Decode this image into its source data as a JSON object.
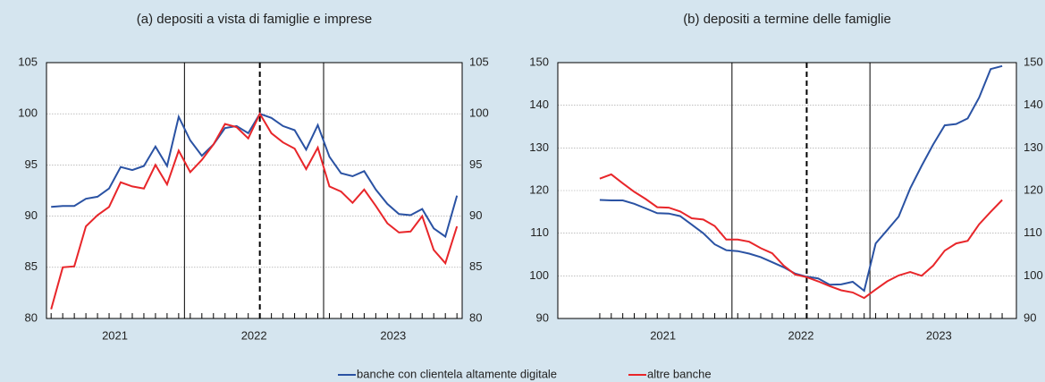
{
  "legend": [
    {
      "name": "banche con clientela altamente digitale",
      "color": "#2a52a3"
    },
    {
      "name": "altre banche",
      "color": "#e8262a"
    }
  ],
  "chart_data": [
    {
      "type": "line",
      "title": "(a) depositi a vista di famiglie e imprese",
      "x": [
        0,
        1,
        2,
        3,
        4,
        5,
        6,
        7,
        8,
        9,
        10,
        11,
        12,
        13,
        14,
        15,
        16,
        17,
        18,
        19,
        20,
        21,
        22,
        23,
        24,
        25,
        26,
        27,
        28,
        29,
        30,
        31,
        32,
        33,
        34,
        35
      ],
      "xlim": [
        -0.4,
        35.45
      ],
      "xticks": [
        {
          "value": 5.5,
          "label": "2021"
        },
        {
          "value": 17.5,
          "label": "2022"
        },
        {
          "value": 29.5,
          "label": "2023"
        }
      ],
      "year_lines": [
        11.5,
        23.5
      ],
      "dashed_line": 18,
      "ylim": [
        80,
        105
      ],
      "yticks": [
        80,
        85,
        90,
        95,
        100,
        105
      ],
      "y2lim": [
        80,
        105
      ],
      "y2ticks": [
        80,
        85,
        90,
        95,
        100,
        105
      ],
      "grid": true,
      "series": [
        {
          "color": "#2a52a3",
          "values": [
            90.9,
            91,
            91,
            91.7,
            91.9,
            92.7,
            94.8,
            94.5,
            94.9,
            96.8,
            94.9,
            99.7,
            97.4,
            95.9,
            97,
            98.6,
            98.8,
            98.1,
            100,
            99.6,
            98.8,
            98.4,
            96.5,
            98.9,
            95.8,
            94.2,
            93.9,
            94.4,
            92.6,
            91.2,
            90.2,
            90.1,
            90.7,
            88.8,
            88,
            92
          ]
        },
        {
          "color": "#e8262a",
          "values": [
            80.9,
            85,
            85.1,
            89,
            90.1,
            90.9,
            93.3,
            92.9,
            92.7,
            95,
            93.1,
            96.4,
            94.3,
            95.5,
            97,
            99,
            98.7,
            97.6,
            100,
            98.1,
            97.2,
            96.6,
            94.6,
            96.7,
            92.9,
            92.4,
            91.3,
            92.6,
            91,
            89.3,
            88.4,
            88.5,
            90,
            86.7,
            85.4,
            89
          ]
        }
      ]
    },
    {
      "type": "line",
      "title": "(b) depositi a termine delle famiglie",
      "x": [
        0,
        1,
        2,
        3,
        4,
        5,
        6,
        7,
        8,
        9,
        10,
        11,
        12,
        13,
        14,
        15,
        16,
        17,
        18,
        19,
        20,
        21,
        22,
        23,
        24,
        25,
        26,
        27,
        28,
        29,
        30,
        31,
        32,
        33,
        34,
        35
      ],
      "xlim": [
        -3.65,
        36.24
      ],
      "xticks": [
        {
          "value": 5.5,
          "label": "2021"
        },
        {
          "value": 17.5,
          "label": "2022"
        },
        {
          "value": 29.5,
          "label": "2023"
        }
      ],
      "year_lines": [
        11.5,
        23.5
      ],
      "dashed_line": 18,
      "ylim": [
        90,
        150
      ],
      "yticks": [
        90,
        100,
        110,
        120,
        130,
        140,
        150
      ],
      "y2lim": [
        90,
        150
      ],
      "y2ticks": [
        90,
        100,
        110,
        120,
        130,
        140,
        150
      ],
      "grid": true,
      "series": [
        {
          "color": "#2a52a3",
          "values": [
            117.8,
            117.7,
            117.7,
            116.9,
            115.8,
            114.7,
            114.6,
            114,
            112,
            110,
            107.4,
            106,
            105.8,
            105.2,
            104.4,
            103.2,
            102,
            100.5,
            99.8,
            99.4,
            97.9,
            98,
            98.6,
            96.5,
            107.6,
            110.7,
            113.9,
            120.5,
            125.8,
            130.8,
            135.3,
            135.6,
            136.9,
            141.8,
            148.5,
            149.2
          ]
        },
        {
          "color": "#e8262a",
          "values": [
            122.8,
            123.8,
            121.7,
            119.7,
            118,
            116.1,
            116,
            115.1,
            113.5,
            113.2,
            111.7,
            108.5,
            108.5,
            108,
            106.5,
            105.3,
            102.4,
            100.3,
            99.7,
            98.7,
            97.6,
            96.6,
            96.1,
            94.8,
            96.8,
            98.7,
            100.1,
            100.9,
            100,
            102.4,
            105.9,
            107.6,
            108.2,
            112.1,
            115,
            117.8
          ]
        }
      ]
    }
  ]
}
